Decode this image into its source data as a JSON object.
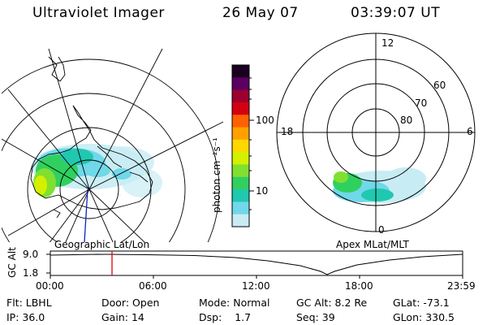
{
  "header": {
    "instrument": "Ultraviolet Imager",
    "date": "26 May 07",
    "time": "03:39:07 UT"
  },
  "left_panel": {
    "caption": "Geographic Lat/Lon"
  },
  "right_panel": {
    "caption": "Apex MLat/MLT",
    "mlt_labels": {
      "top": "12",
      "left": "18",
      "right": "6",
      "bottom": "0"
    },
    "lat_labels": [
      "60",
      "70",
      "80"
    ]
  },
  "colorbar": {
    "unit_label": "photon cm⁻²s⁻¹",
    "ticks": [
      "100",
      "10"
    ],
    "colors": [
      "#1a0020",
      "#5a0060",
      "#9b0030",
      "#d40010",
      "#ff6000",
      "#ffa000",
      "#ffd800",
      "#d4f000",
      "#80e030",
      "#30d060",
      "#20c8b0",
      "#70d8e8",
      "#c8ecf4"
    ]
  },
  "timeline": {
    "axis_label": "GC Alt",
    "y_ticks": [
      "9.0",
      "1.8"
    ],
    "x_ticks": [
      "00:00",
      "06:00",
      "12:00",
      "18:00",
      "23:59"
    ],
    "marker_color": "#e00000"
  },
  "info": {
    "flt": {
      "label": "Flt:",
      "value": "LBHL"
    },
    "ip": {
      "label": "IP:",
      "value": "36.0"
    },
    "door": {
      "label": "Door:",
      "value": "Open"
    },
    "gain": {
      "label": "Gain:",
      "value": "14"
    },
    "mode": {
      "label": "Mode:",
      "value": "Normal"
    },
    "dsp": {
      "label": "Dsp:",
      "value": "1.7"
    },
    "gc_alt": {
      "label": "GC Alt:",
      "value": "8.2 Re"
    },
    "seq": {
      "label": "Seq:",
      "value": "39"
    },
    "glat": {
      "label": "GLat:",
      "value": "-73.1"
    },
    "glon": {
      "label": "GLon:",
      "value": "330.5"
    }
  }
}
